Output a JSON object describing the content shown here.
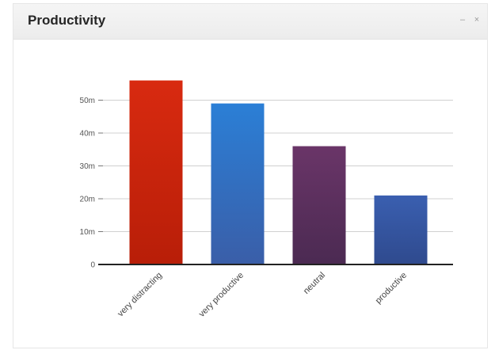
{
  "widget": {
    "title": "Productivity",
    "minimize_icon": "minimize-icon",
    "close_icon": "close-icon"
  },
  "chart_data": {
    "type": "bar",
    "categories": [
      "very distracting",
      "very productive",
      "neutral",
      "productive"
    ],
    "values": [
      56,
      49,
      36,
      21
    ],
    "colors": [
      [
        "#d82a10",
        "#b81e08"
      ],
      [
        "#2b7fd6",
        "#3a5ea8"
      ],
      [
        "#6a3568",
        "#4b2a52"
      ],
      [
        "#3a5fb0",
        "#2f4a8e"
      ]
    ],
    "ylim": [
      0,
      60
    ],
    "yticks": [
      0,
      10,
      20,
      30,
      40,
      50
    ],
    "ytick_labels": [
      "0",
      "10m",
      "20m",
      "30m",
      "40m",
      "50m"
    ],
    "grid": true,
    "xlabel": "",
    "ylabel": ""
  }
}
